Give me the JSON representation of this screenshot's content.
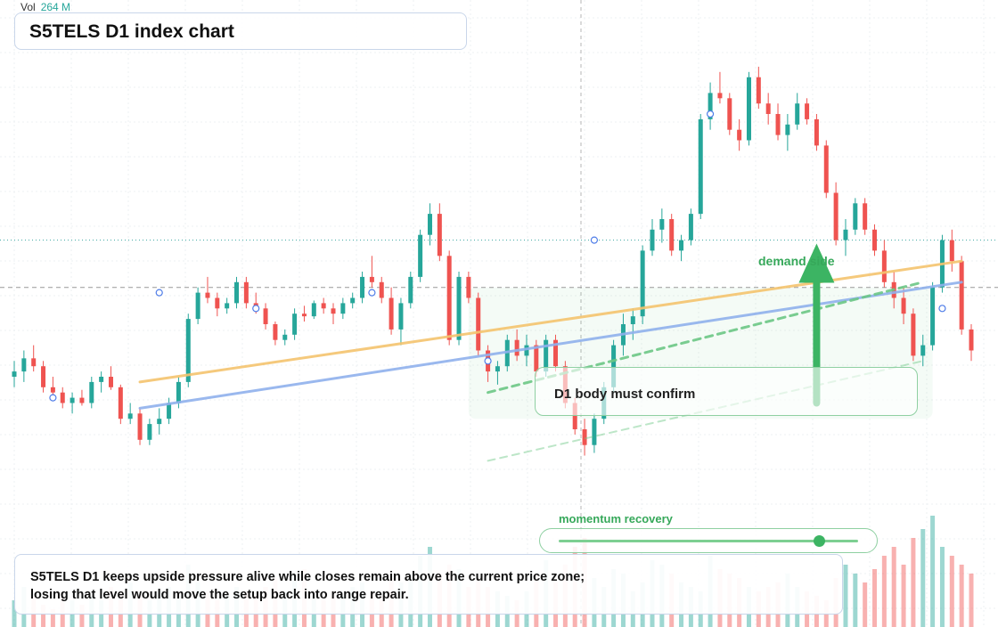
{
  "header": {
    "title": "S5TELS D1 index chart",
    "volume_label": "Vol",
    "volume_value": "264 M"
  },
  "annotations": {
    "zone_label": "demand side",
    "confirm_note": "D1 body must confirm",
    "momentum_label": "momentum recovery",
    "momentum_level": 0.87,
    "summary_line_1": "S5TELS D1 keeps upside pressure alive while closes remain above the current price zone;",
    "summary_line_2": "losing that level would move the setup back into range repair."
  },
  "colors": {
    "up": "#26a69a",
    "down": "#ef5350",
    "accent_green": "#3cb463",
    "trend_orange": "#f4c36e",
    "trend_blue": "#8fb0ec"
  },
  "chart_data": {
    "type": "candlestick",
    "title": "S5TELS D1 index chart",
    "xlabel": "",
    "ylabel": "",
    "ylim": [
      0,
      100
    ],
    "grid": true,
    "legend": "none",
    "bar_count": 100,
    "candles": [
      {
        "o": 30,
        "h": 33,
        "l": 28,
        "c": 31
      },
      {
        "o": 31,
        "h": 35,
        "l": 29,
        "c": 33.5
      },
      {
        "o": 33.5,
        "h": 36,
        "l": 31,
        "c": 32
      },
      {
        "o": 32,
        "h": 33,
        "l": 27,
        "c": 28
      },
      {
        "o": 28,
        "h": 30,
        "l": 25.5,
        "c": 27
      },
      {
        "o": 27,
        "h": 28,
        "l": 24,
        "c": 25
      },
      {
        "o": 25,
        "h": 27,
        "l": 23,
        "c": 26
      },
      {
        "o": 26,
        "h": 27.5,
        "l": 24.5,
        "c": 25
      },
      {
        "o": 25,
        "h": 30,
        "l": 24,
        "c": 29
      },
      {
        "o": 29,
        "h": 31,
        "l": 27,
        "c": 30
      },
      {
        "o": 30,
        "h": 32,
        "l": 27.5,
        "c": 28
      },
      {
        "o": 28,
        "h": 28.5,
        "l": 21,
        "c": 22
      },
      {
        "o": 22,
        "h": 25,
        "l": 21,
        "c": 23
      },
      {
        "o": 23,
        "h": 24,
        "l": 17,
        "c": 18
      },
      {
        "o": 18,
        "h": 22,
        "l": 17,
        "c": 21
      },
      {
        "o": 21,
        "h": 24,
        "l": 19,
        "c": 22
      },
      {
        "o": 22,
        "h": 26,
        "l": 21,
        "c": 25
      },
      {
        "o": 25,
        "h": 30,
        "l": 24,
        "c": 29
      },
      {
        "o": 29,
        "h": 42,
        "l": 28,
        "c": 41
      },
      {
        "o": 41,
        "h": 47,
        "l": 40,
        "c": 46
      },
      {
        "o": 46,
        "h": 49,
        "l": 44,
        "c": 45
      },
      {
        "o": 45,
        "h": 46,
        "l": 41.5,
        "c": 43
      },
      {
        "o": 43,
        "h": 45,
        "l": 42,
        "c": 44
      },
      {
        "o": 44,
        "h": 49,
        "l": 43,
        "c": 48
      },
      {
        "o": 48,
        "h": 49,
        "l": 43,
        "c": 44
      },
      {
        "o": 44,
        "h": 46,
        "l": 42,
        "c": 43
      },
      {
        "o": 43,
        "h": 44,
        "l": 39,
        "c": 40
      },
      {
        "o": 40,
        "h": 40.5,
        "l": 36,
        "c": 37
      },
      {
        "o": 37,
        "h": 39,
        "l": 36,
        "c": 38
      },
      {
        "o": 38,
        "h": 43,
        "l": 37,
        "c": 42
      },
      {
        "o": 42,
        "h": 43.5,
        "l": 40.5,
        "c": 41.5
      },
      {
        "o": 41.5,
        "h": 44.5,
        "l": 41,
        "c": 44
      },
      {
        "o": 44,
        "h": 45,
        "l": 42,
        "c": 43
      },
      {
        "o": 43,
        "h": 44,
        "l": 40,
        "c": 42
      },
      {
        "o": 42,
        "h": 45,
        "l": 41,
        "c": 44
      },
      {
        "o": 44,
        "h": 46,
        "l": 43,
        "c": 45
      },
      {
        "o": 45,
        "h": 50,
        "l": 44,
        "c": 49
      },
      {
        "o": 49,
        "h": 53,
        "l": 47,
        "c": 48
      },
      {
        "o": 48,
        "h": 49,
        "l": 44,
        "c": 45
      },
      {
        "o": 45,
        "h": 47,
        "l": 38,
        "c": 39
      },
      {
        "o": 39,
        "h": 45,
        "l": 36,
        "c": 44
      },
      {
        "o": 44,
        "h": 50,
        "l": 43,
        "c": 49
      },
      {
        "o": 49,
        "h": 58,
        "l": 48,
        "c": 57
      },
      {
        "o": 57,
        "h": 63,
        "l": 55,
        "c": 61
      },
      {
        "o": 61,
        "h": 63,
        "l": 52,
        "c": 53
      },
      {
        "o": 53,
        "h": 54,
        "l": 36,
        "c": 37
      },
      {
        "o": 37,
        "h": 50,
        "l": 36,
        "c": 49
      },
      {
        "o": 49,
        "h": 50,
        "l": 44,
        "c": 45
      },
      {
        "o": 45,
        "h": 46,
        "l": 34,
        "c": 35
      },
      {
        "o": 35,
        "h": 36,
        "l": 29,
        "c": 31
      },
      {
        "o": 31,
        "h": 33,
        "l": 28.5,
        "c": 32
      },
      {
        "o": 32,
        "h": 38,
        "l": 31,
        "c": 37
      },
      {
        "o": 37,
        "h": 39,
        "l": 33,
        "c": 34
      },
      {
        "o": 34,
        "h": 38,
        "l": 32,
        "c": 36
      },
      {
        "o": 36,
        "h": 37,
        "l": 30,
        "c": 31
      },
      {
        "o": 31,
        "h": 38,
        "l": 30,
        "c": 37
      },
      {
        "o": 37,
        "h": 38,
        "l": 31,
        "c": 32
      },
      {
        "o": 32,
        "h": 33,
        "l": 24,
        "c": 25
      },
      {
        "o": 25,
        "h": 26,
        "l": 19,
        "c": 20
      },
      {
        "o": 20,
        "h": 22,
        "l": 15,
        "c": 17
      },
      {
        "o": 17,
        "h": 23,
        "l": 15.5,
        "c": 22
      },
      {
        "o": 22,
        "h": 29,
        "l": 21,
        "c": 28
      },
      {
        "o": 28,
        "h": 37,
        "l": 27,
        "c": 36
      },
      {
        "o": 36,
        "h": 42,
        "l": 34,
        "c": 40
      },
      {
        "o": 40,
        "h": 43,
        "l": 37,
        "c": 41.5
      },
      {
        "o": 41.5,
        "h": 55,
        "l": 40,
        "c": 54
      },
      {
        "o": 54,
        "h": 60,
        "l": 53,
        "c": 58
      },
      {
        "o": 58,
        "h": 62,
        "l": 55.5,
        "c": 60
      },
      {
        "o": 60,
        "h": 61,
        "l": 53,
        "c": 54
      },
      {
        "o": 54,
        "h": 57,
        "l": 52,
        "c": 56
      },
      {
        "o": 56,
        "h": 62,
        "l": 55,
        "c": 61
      },
      {
        "o": 61,
        "h": 80,
        "l": 60,
        "c": 79
      },
      {
        "o": 79,
        "h": 86,
        "l": 77,
        "c": 84
      },
      {
        "o": 84,
        "h": 88,
        "l": 82,
        "c": 83
      },
      {
        "o": 83,
        "h": 84,
        "l": 76,
        "c": 77
      },
      {
        "o": 77,
        "h": 79,
        "l": 73,
        "c": 75
      },
      {
        "o": 75,
        "h": 88,
        "l": 74,
        "c": 87
      },
      {
        "o": 87,
        "h": 89,
        "l": 81,
        "c": 82
      },
      {
        "o": 82,
        "h": 84,
        "l": 78,
        "c": 80
      },
      {
        "o": 80,
        "h": 82,
        "l": 75,
        "c": 76
      },
      {
        "o": 76,
        "h": 80,
        "l": 73,
        "c": 78
      },
      {
        "o": 78,
        "h": 84,
        "l": 77,
        "c": 82
      },
      {
        "o": 82,
        "h": 83,
        "l": 78,
        "c": 79
      },
      {
        "o": 79,
        "h": 80,
        "l": 73,
        "c": 74
      },
      {
        "o": 74,
        "h": 75,
        "l": 64,
        "c": 65
      },
      {
        "o": 65,
        "h": 67,
        "l": 55,
        "c": 56
      },
      {
        "o": 56,
        "h": 60,
        "l": 53,
        "c": 58
      },
      {
        "o": 58,
        "h": 64,
        "l": 57,
        "c": 63
      },
      {
        "o": 63,
        "h": 64,
        "l": 57,
        "c": 58
      },
      {
        "o": 58,
        "h": 59,
        "l": 53,
        "c": 54
      },
      {
        "o": 54,
        "h": 56,
        "l": 47,
        "c": 48
      },
      {
        "o": 48,
        "h": 50,
        "l": 43,
        "c": 45
      },
      {
        "o": 45,
        "h": 47,
        "l": 40,
        "c": 42
      },
      {
        "o": 42,
        "h": 43,
        "l": 33,
        "c": 34
      },
      {
        "o": 34,
        "h": 38,
        "l": 32,
        "c": 36
      },
      {
        "o": 36,
        "h": 48,
        "l": 35,
        "c": 47
      },
      {
        "o": 47,
        "h": 57,
        "l": 46,
        "c": 56
      },
      {
        "o": 56,
        "h": 58,
        "l": 50,
        "c": 52
      },
      {
        "o": 52,
        "h": 53,
        "l": 38,
        "c": 39
      },
      {
        "o": 39,
        "h": 40,
        "l": 33,
        "c": 35
      }
    ],
    "volumes": [
      6,
      9,
      7,
      5,
      4,
      8,
      6,
      5,
      7,
      6,
      9,
      8,
      10,
      7,
      6,
      8,
      9,
      7,
      14,
      10,
      8,
      6,
      7,
      9,
      8,
      7,
      9,
      11,
      8,
      12,
      13,
      7,
      6,
      8,
      7,
      9,
      10,
      8,
      7,
      11,
      10,
      12,
      16,
      18,
      12,
      14,
      13,
      9,
      11,
      9,
      8,
      7,
      6,
      8,
      12,
      15,
      10,
      14,
      18,
      20,
      11,
      9,
      13,
      12,
      8,
      10,
      15,
      14,
      12,
      10,
      9,
      8,
      16,
      13,
      12,
      11,
      9,
      8,
      9,
      10,
      12,
      9,
      8,
      7,
      6,
      11,
      14,
      12,
      10,
      13,
      16,
      18,
      14,
      20,
      22,
      25,
      18,
      16,
      14,
      12
    ],
    "volume_panel_scale": [
      0,
      30
    ],
    "markers": [
      {
        "bar": 4,
        "value": 26
      },
      {
        "bar": 15,
        "value": 46
      },
      {
        "bar": 25,
        "value": 43
      },
      {
        "bar": 37,
        "value": 46
      },
      {
        "bar": 49,
        "value": 33
      },
      {
        "bar": 60,
        "value": 56
      },
      {
        "bar": 72,
        "value": 80
      },
      {
        "bar": 83,
        "value": 48
      },
      {
        "bar": 96,
        "value": 43
      }
    ],
    "reference_levels": [
      {
        "value": 56,
        "style": "dotted",
        "color": "#3aa6a0"
      },
      {
        "value": 47,
        "style": "dashed",
        "color": "#999999"
      }
    ],
    "trendlines": [
      {
        "from": {
          "bar": 13,
          "value": 29
        },
        "to": {
          "bar": 98,
          "value": 52
        },
        "color": "#f4c36e",
        "style": "solid"
      },
      {
        "from": {
          "bar": 13,
          "value": 24
        },
        "to": {
          "bar": 98,
          "value": 48
        },
        "color": "#8fb0ec",
        "style": "solid"
      },
      {
        "from": {
          "bar": 49,
          "value": 27
        },
        "to": {
          "bar": 94,
          "value": 48
        },
        "color": "#6cc785",
        "style": "dashed"
      },
      {
        "from": {
          "bar": 49,
          "value": 14
        },
        "to": {
          "bar": 94,
          "value": 33
        },
        "color": "#6cc785",
        "style": "dashed-faint"
      }
    ],
    "demand_zone": {
      "from_bar": 47,
      "to_bar": 95,
      "low": 22,
      "high": 47
    },
    "arrow": {
      "bar": 83,
      "from_value": 25,
      "to_value": 55,
      "direction": "up"
    }
  }
}
